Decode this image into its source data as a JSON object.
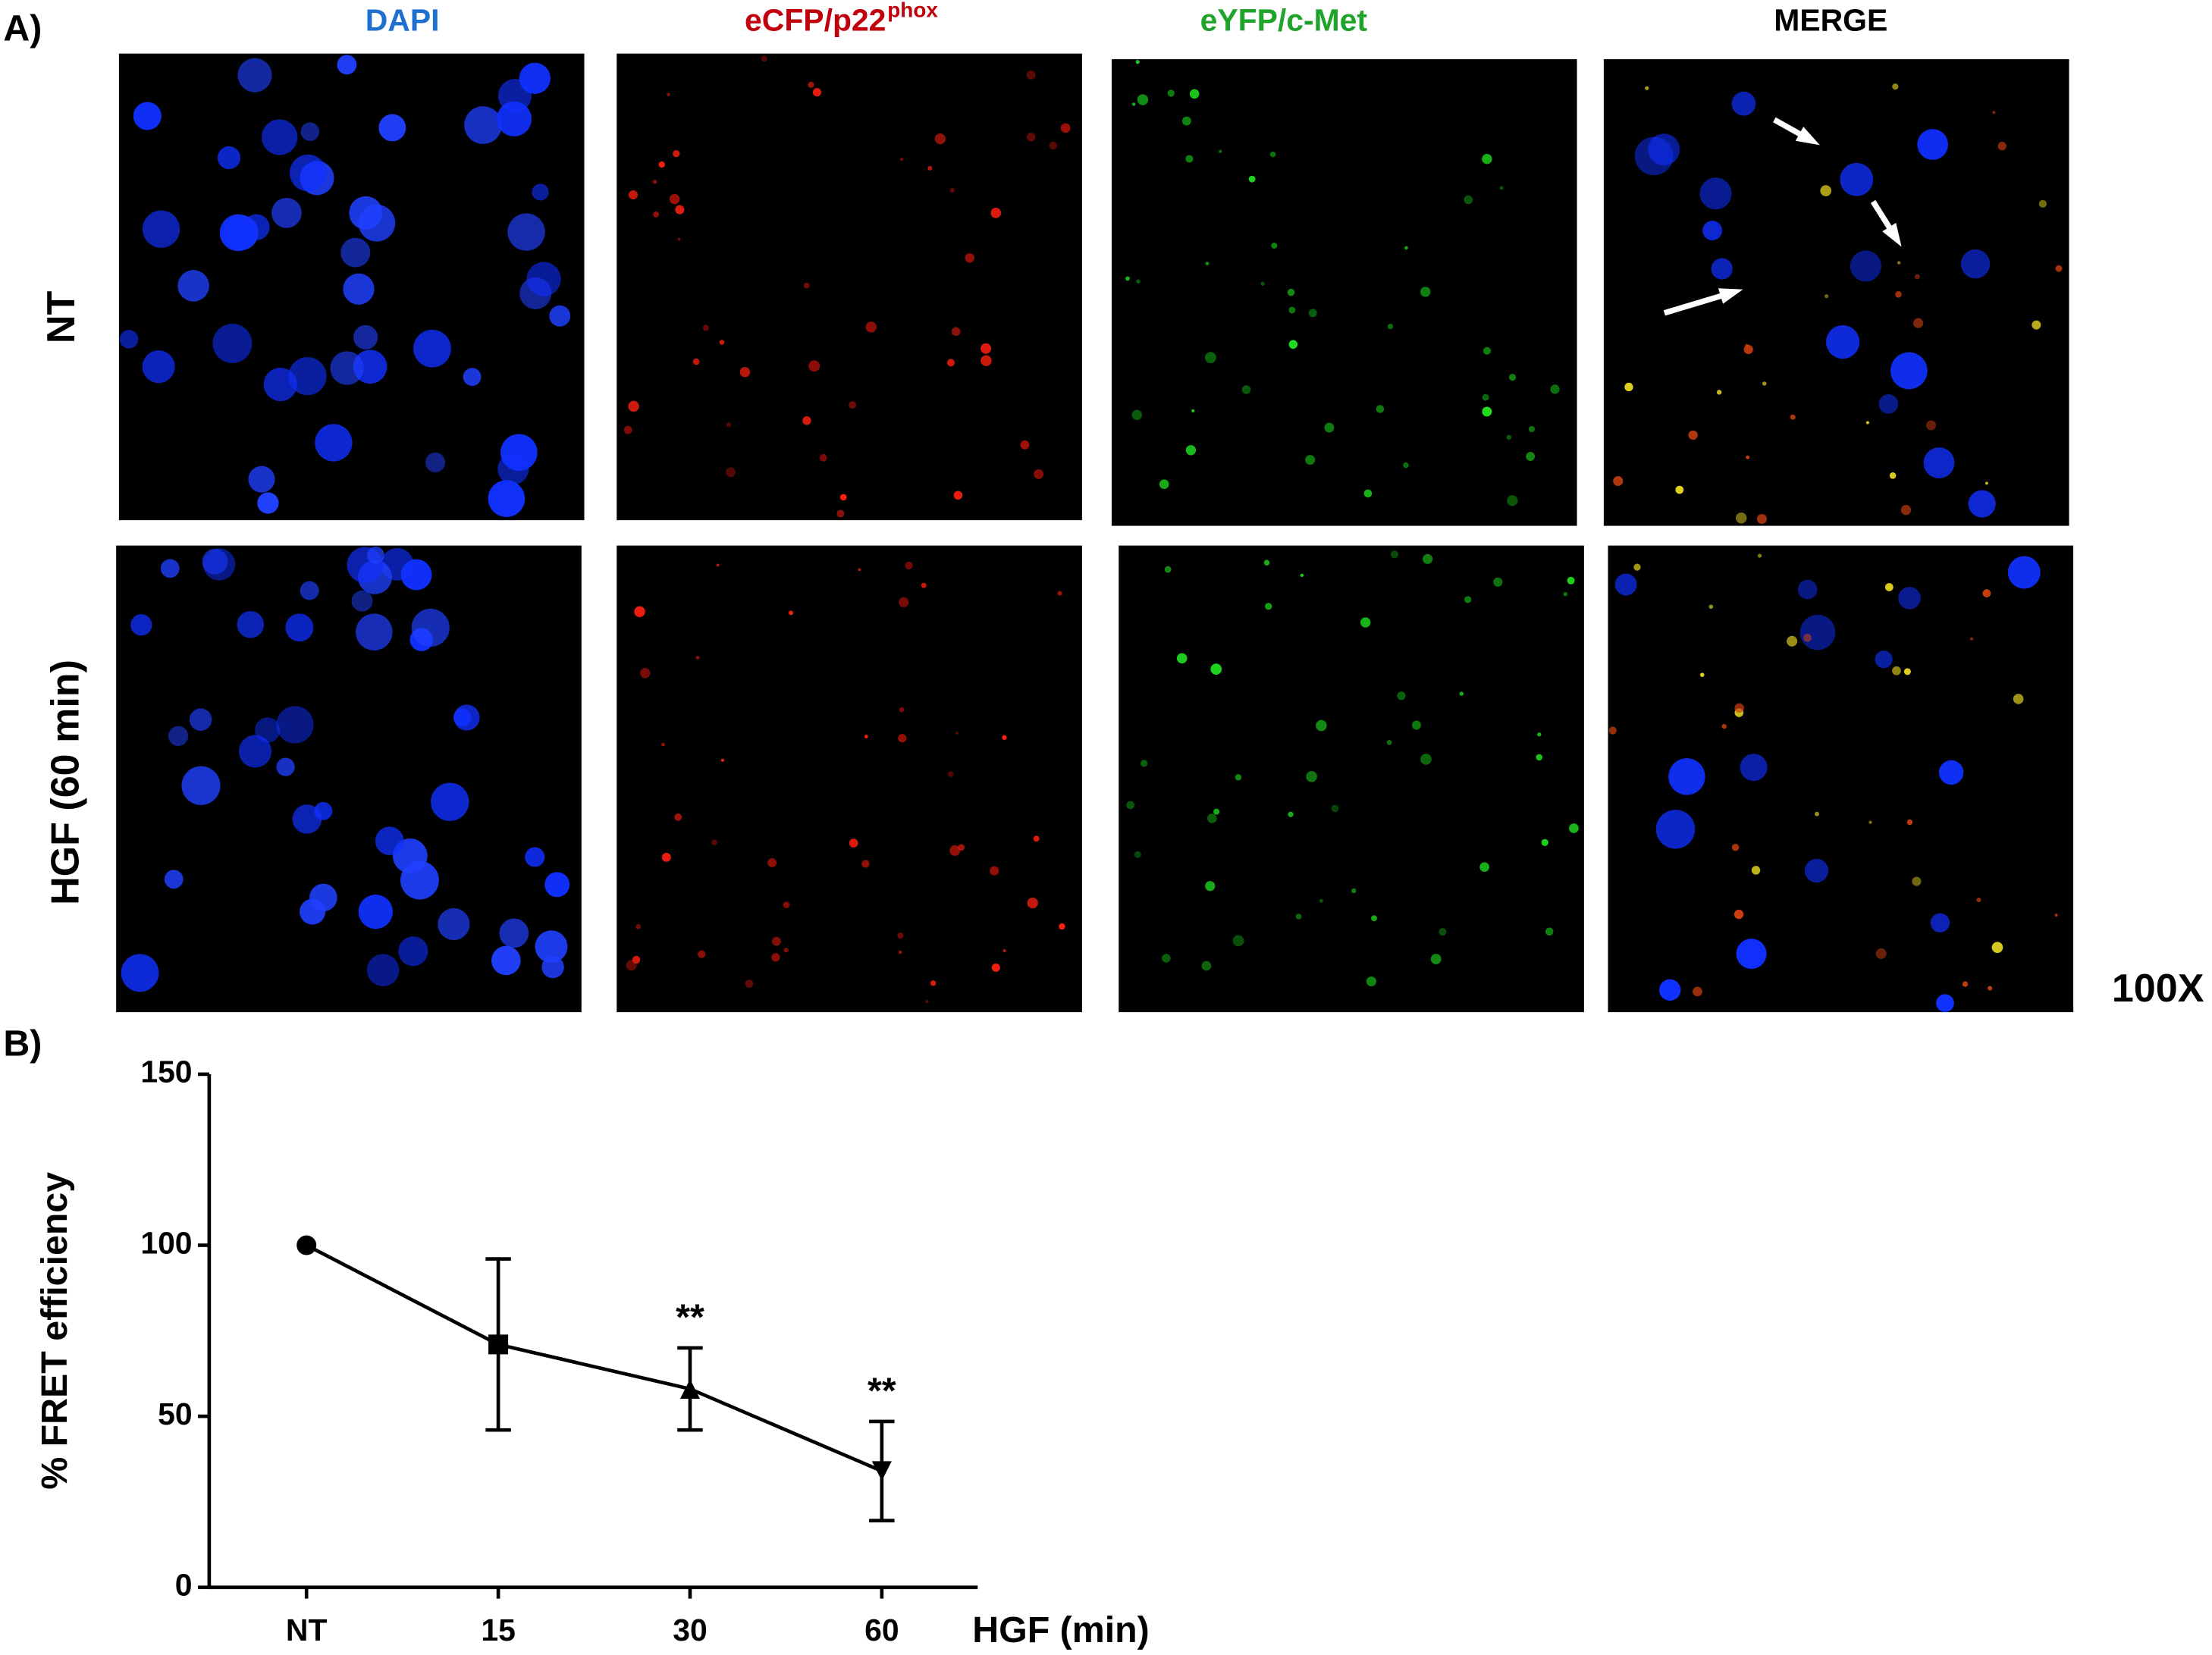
{
  "panel_a": {
    "label": "A)",
    "columns": [
      {
        "text": "DAPI",
        "color": "#1f6fd0"
      },
      {
        "text": "eCFP/p22",
        "sup": "phox",
        "color": "#c0000a"
      },
      {
        "text": "eYFP/c-Met",
        "color": "#1fa32a"
      },
      {
        "text": "MERGE",
        "color": "#000000"
      }
    ],
    "rows": [
      "NT",
      "HGF (60 min)"
    ],
    "magnification": "100X"
  },
  "chart_data": {
    "type": "line",
    "label": "B)",
    "ylabel": "% FRET efficiency",
    "xlabel": "HGF (min)",
    "categories": [
      "NT",
      "15",
      "30",
      "60"
    ],
    "values": [
      100,
      71,
      58,
      34
    ],
    "errors": [
      null,
      25,
      12,
      14.5
    ],
    "markers": [
      "circle",
      "square",
      "triangle-up",
      "triangle-down"
    ],
    "annotations": [
      null,
      null,
      "**",
      "**"
    ],
    "color": "#000000",
    "ylim": [
      0,
      150
    ],
    "yticks": [
      0,
      50,
      100,
      150
    ]
  }
}
